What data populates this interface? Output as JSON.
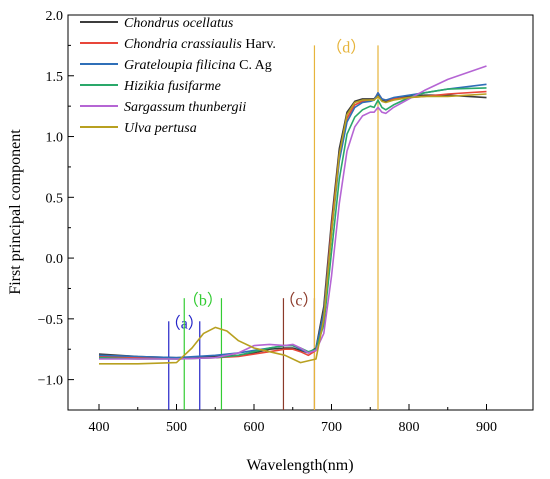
{
  "chart_data": {
    "type": "line",
    "title": "",
    "xlabel": "Wavelength(nm)",
    "ylabel": "First principal component",
    "xlim": [
      360,
      960
    ],
    "ylim": [
      -1.25,
      2.0
    ],
    "xticks": [
      400,
      500,
      600,
      700,
      800,
      900
    ],
    "yticks": [
      -1.0,
      -0.5,
      0.0,
      0.5,
      1.0,
      1.5,
      2.0
    ],
    "xtick_labels": [
      "400",
      "500",
      "600",
      "700",
      "800",
      "900"
    ],
    "ytick_labels": [
      "−1.0",
      "−0.5",
      "0.0",
      "0.5",
      "1.0",
      "1.5",
      "2.0"
    ],
    "grid": false,
    "legend_position": "top-left",
    "series": [
      {
        "name": "Chondrus ocellatus",
        "name_italic": "Chondrus ocellatus",
        "name_suffix": "",
        "color": "#3c3c3c",
        "x": [
          400,
          450,
          500,
          550,
          580,
          600,
          620,
          640,
          650,
          660,
          670,
          680,
          690,
          700,
          710,
          720,
          730,
          740,
          750,
          755,
          760,
          765,
          770,
          780,
          800,
          820,
          850,
          900
        ],
        "y": [
          -0.79,
          -0.81,
          -0.82,
          -0.81,
          -0.8,
          -0.78,
          -0.75,
          -0.74,
          -0.74,
          -0.76,
          -0.78,
          -0.74,
          -0.4,
          0.3,
          0.9,
          1.2,
          1.29,
          1.31,
          1.31,
          1.31,
          1.35,
          1.3,
          1.29,
          1.31,
          1.33,
          1.34,
          1.34,
          1.32
        ]
      },
      {
        "name": "Chondria crassiaulis Harv.",
        "name_italic": "Chondria crassiaulis",
        "name_suffix": " Harv.",
        "color": "#e8463a",
        "x": [
          400,
          450,
          500,
          550,
          580,
          600,
          620,
          640,
          650,
          660,
          670,
          680,
          690,
          700,
          710,
          720,
          730,
          740,
          750,
          755,
          760,
          765,
          770,
          780,
          800,
          820,
          850,
          900
        ],
        "y": [
          -0.81,
          -0.82,
          -0.83,
          -0.82,
          -0.81,
          -0.79,
          -0.77,
          -0.75,
          -0.75,
          -0.77,
          -0.8,
          -0.76,
          -0.45,
          0.25,
          0.85,
          1.15,
          1.26,
          1.29,
          1.3,
          1.3,
          1.36,
          1.31,
          1.3,
          1.31,
          1.32,
          1.33,
          1.35,
          1.37
        ]
      },
      {
        "name": "Grateloupia filicina C. Ag",
        "name_italic": "Grateloupia filicina",
        "name_suffix": " C. Ag",
        "color": "#2f6fb8",
        "x": [
          400,
          450,
          500,
          550,
          580,
          600,
          620,
          640,
          650,
          660,
          670,
          680,
          690,
          700,
          710,
          720,
          730,
          740,
          750,
          755,
          760,
          765,
          770,
          780,
          800,
          820,
          850,
          900
        ],
        "y": [
          -0.8,
          -0.81,
          -0.82,
          -0.8,
          -0.78,
          -0.76,
          -0.74,
          -0.72,
          -0.72,
          -0.75,
          -0.78,
          -0.75,
          -0.45,
          0.2,
          0.8,
          1.12,
          1.24,
          1.28,
          1.29,
          1.3,
          1.36,
          1.31,
          1.3,
          1.32,
          1.34,
          1.36,
          1.39,
          1.43
        ]
      },
      {
        "name": "Hizikia fusifarme",
        "name_italic": "Hizikia fusifarme",
        "name_suffix": "",
        "color": "#2aa86a",
        "x": [
          400,
          450,
          500,
          550,
          580,
          600,
          620,
          640,
          650,
          660,
          670,
          680,
          690,
          700,
          710,
          720,
          730,
          740,
          750,
          755,
          760,
          765,
          770,
          780,
          800,
          820,
          850,
          900
        ],
        "y": [
          -0.82,
          -0.83,
          -0.83,
          -0.82,
          -0.8,
          -0.77,
          -0.74,
          -0.72,
          -0.72,
          -0.74,
          -0.77,
          -0.75,
          -0.55,
          0.05,
          0.65,
          1.02,
          1.16,
          1.22,
          1.25,
          1.24,
          1.3,
          1.24,
          1.22,
          1.26,
          1.32,
          1.36,
          1.39,
          1.4
        ]
      },
      {
        "name": "Sargassum thunbergii",
        "name_italic": "Sargassum thunbergii",
        "name_suffix": "",
        "color": "#b565d4",
        "x": [
          400,
          450,
          500,
          550,
          580,
          600,
          620,
          640,
          650,
          660,
          670,
          680,
          690,
          700,
          710,
          720,
          730,
          740,
          750,
          755,
          760,
          765,
          770,
          780,
          800,
          820,
          850,
          900
        ],
        "y": [
          -0.83,
          -0.83,
          -0.83,
          -0.82,
          -0.78,
          -0.72,
          -0.71,
          -0.72,
          -0.71,
          -0.74,
          -0.78,
          -0.76,
          -0.62,
          -0.15,
          0.45,
          0.88,
          1.08,
          1.17,
          1.2,
          1.2,
          1.24,
          1.2,
          1.19,
          1.24,
          1.31,
          1.38,
          1.47,
          1.58
        ]
      },
      {
        "name": "Ulva pertusa",
        "name_italic": "Ulva pertusa",
        "name_suffix": "",
        "color": "#b8a020",
        "x": [
          400,
          450,
          500,
          520,
          535,
          550,
          565,
          580,
          600,
          620,
          640,
          660,
          680,
          690,
          700,
          710,
          720,
          730,
          740,
          750,
          755,
          760,
          765,
          770,
          780,
          800,
          820,
          850,
          900
        ],
        "y": [
          -0.87,
          -0.87,
          -0.86,
          -0.74,
          -0.62,
          -0.57,
          -0.6,
          -0.68,
          -0.74,
          -0.77,
          -0.8,
          -0.86,
          -0.83,
          -0.5,
          0.2,
          0.85,
          1.18,
          1.28,
          1.3,
          1.3,
          1.3,
          1.33,
          1.29,
          1.28,
          1.3,
          1.32,
          1.33,
          1.33,
          1.35
        ]
      }
    ],
    "regions": [
      {
        "label": "（a）",
        "color": "#2424c8",
        "x_lines": [
          490,
          530
        ],
        "y_top": -0.52,
        "label_x": 510,
        "label_y": -0.58
      },
      {
        "label": "（b）",
        "color": "#33cc33",
        "x_lines": [
          510,
          558
        ],
        "y_top": -0.33,
        "label_x": 534,
        "label_y": -0.39
      },
      {
        "label": "（c）",
        "color": "#8b3a2a",
        "x_lines": [
          638,
          678
        ],
        "y_top": -0.33,
        "label_x": 658,
        "label_y": -0.39
      },
      {
        "label": "（d）",
        "color": "#e6b43c",
        "x_lines": [
          678,
          760
        ],
        "y_top": 1.75,
        "label_x": 719,
        "label_y": 1.69
      }
    ]
  }
}
